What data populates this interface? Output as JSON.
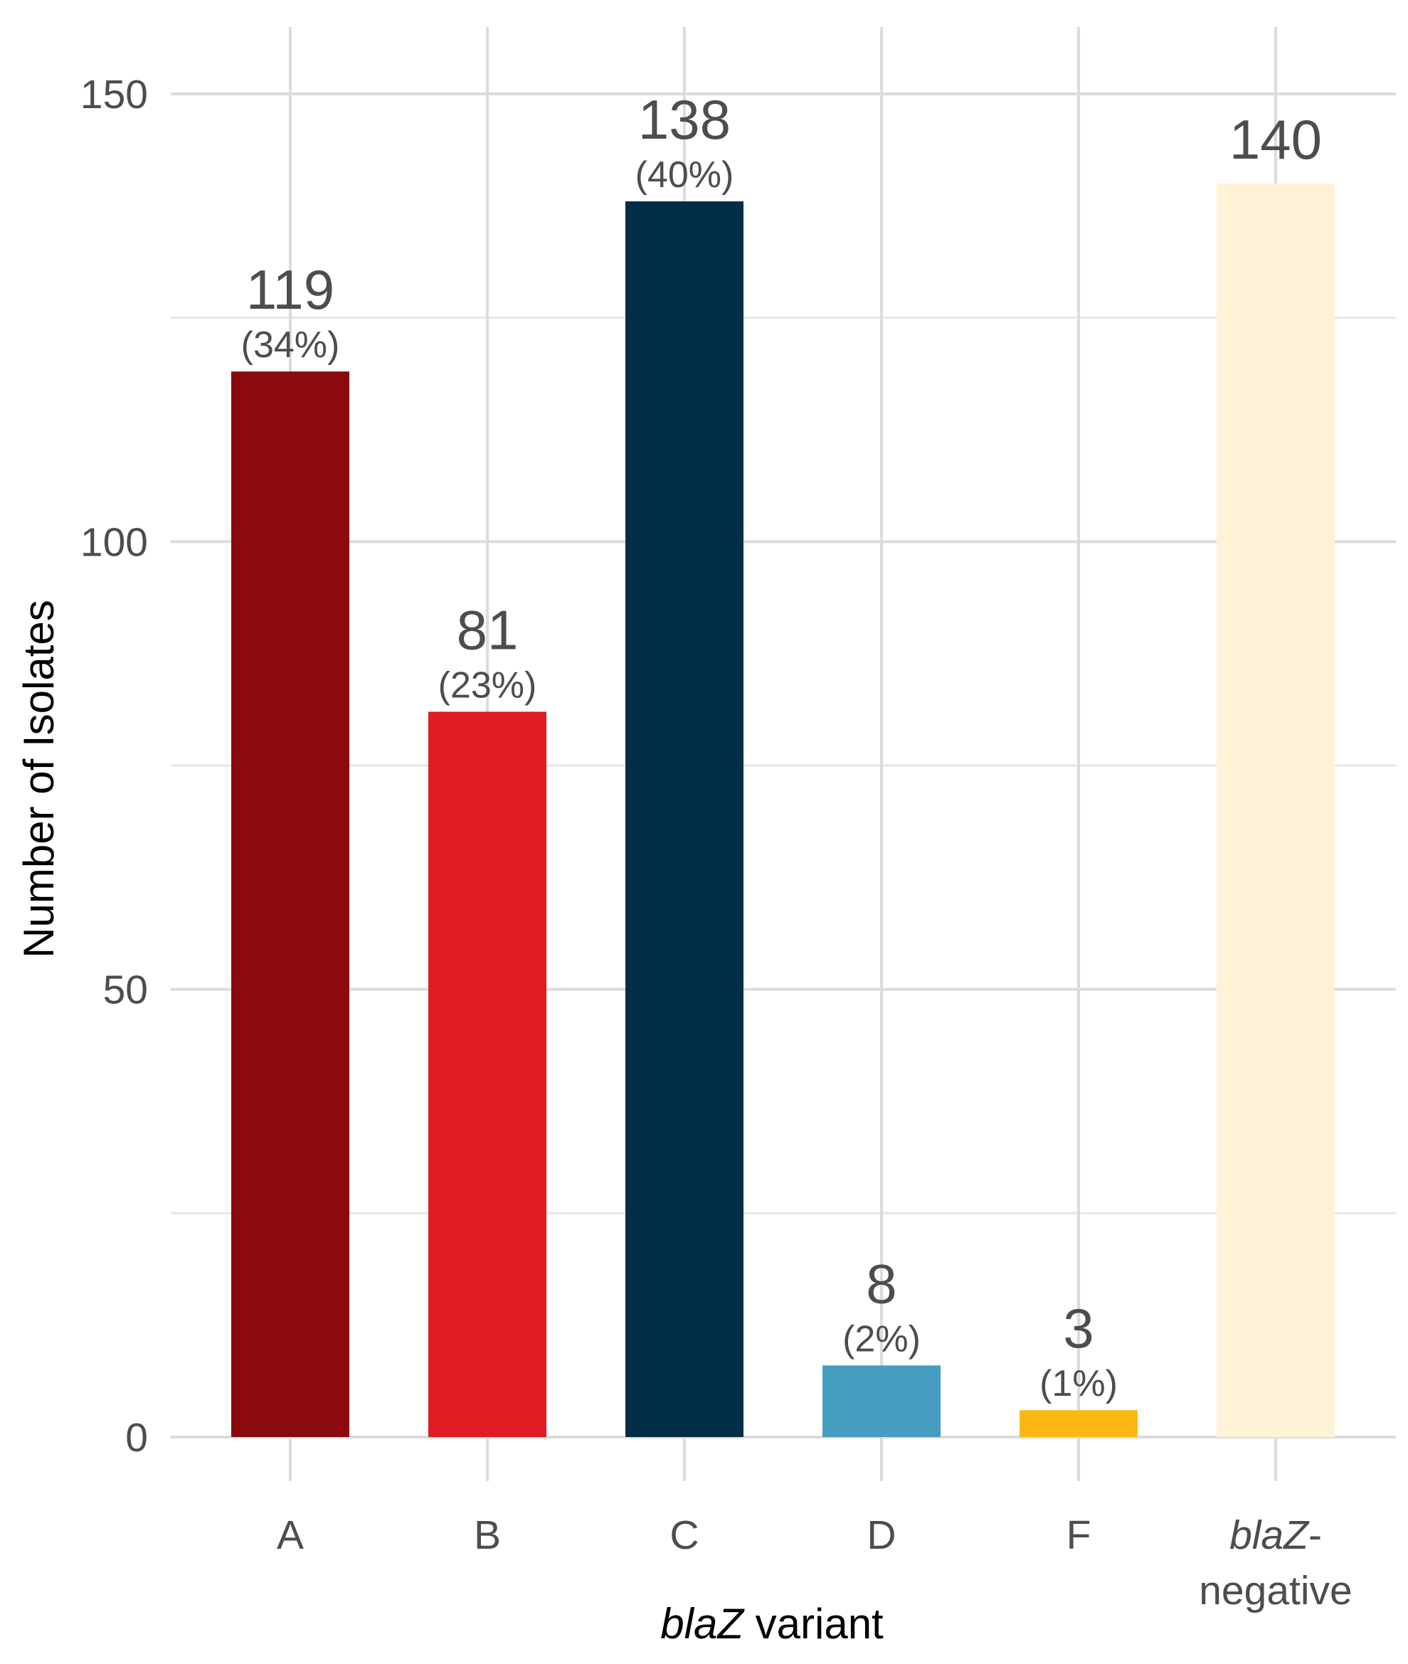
{
  "chart_data": {
    "type": "bar",
    "categories": [
      {
        "id": "A",
        "label": "A",
        "italic_part": "",
        "rest": "A",
        "line2": ""
      },
      {
        "id": "B",
        "label": "B",
        "italic_part": "",
        "rest": "B",
        "line2": ""
      },
      {
        "id": "C",
        "label": "C",
        "italic_part": "",
        "rest": "C",
        "line2": ""
      },
      {
        "id": "D",
        "label": "D",
        "italic_part": "",
        "rest": "D",
        "line2": ""
      },
      {
        "id": "F",
        "label": "F",
        "italic_part": "",
        "rest": "F",
        "line2": ""
      },
      {
        "id": "neg",
        "label": "blaZ-negative",
        "italic_part": "blaZ",
        "rest": "-",
        "line2": "negative"
      }
    ],
    "values": [
      119,
      81,
      138,
      8,
      3,
      140
    ],
    "value_labels": [
      "119",
      "81",
      "138",
      "8",
      "3",
      "140"
    ],
    "percent_labels": [
      "(34%)",
      "(23%)",
      "(40%)",
      "(2%)",
      "(1%)",
      ""
    ],
    "colors": [
      "#8b0a0e",
      "#e01b22",
      "#032e49",
      "#459ec1",
      "#fdb912",
      "#fff2d7"
    ],
    "xlabel": {
      "italic": "blaZ",
      "rest": " variant"
    },
    "ylabel": "Number of Isolates",
    "ylim": [
      0,
      150
    ],
    "yticks": [
      0,
      50,
      100,
      150
    ],
    "ytick_labels": [
      "0",
      "50",
      "100",
      "150"
    ],
    "grid": true,
    "legend": "none"
  }
}
